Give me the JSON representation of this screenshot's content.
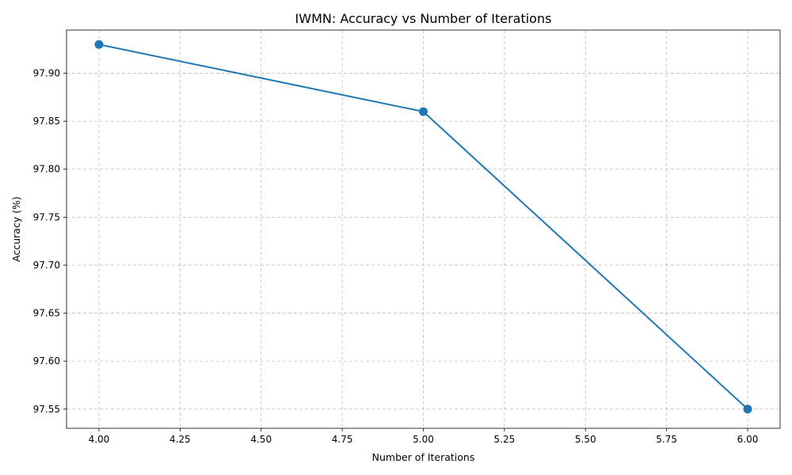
{
  "chart_data": {
    "type": "line",
    "title": "IWMN: Accuracy vs Number of Iterations",
    "xlabel": "Number of Iterations",
    "ylabel": "Accuracy (%)",
    "x": [
      4,
      5,
      6
    ],
    "series": [
      {
        "values": [
          97.93,
          97.86,
          97.55
        ],
        "color": "#1f77b4"
      }
    ],
    "xlim": [
      3.9,
      6.1
    ],
    "ylim": [
      97.53,
      97.945
    ],
    "xticks": [
      "4.00",
      "4.25",
      "4.50",
      "4.75",
      "5.00",
      "5.25",
      "5.50",
      "5.75",
      "6.00"
    ],
    "yticks": [
      "97.55",
      "97.60",
      "97.65",
      "97.70",
      "97.75",
      "97.80",
      "97.85",
      "97.90"
    ],
    "grid": true,
    "marker": "circle"
  }
}
